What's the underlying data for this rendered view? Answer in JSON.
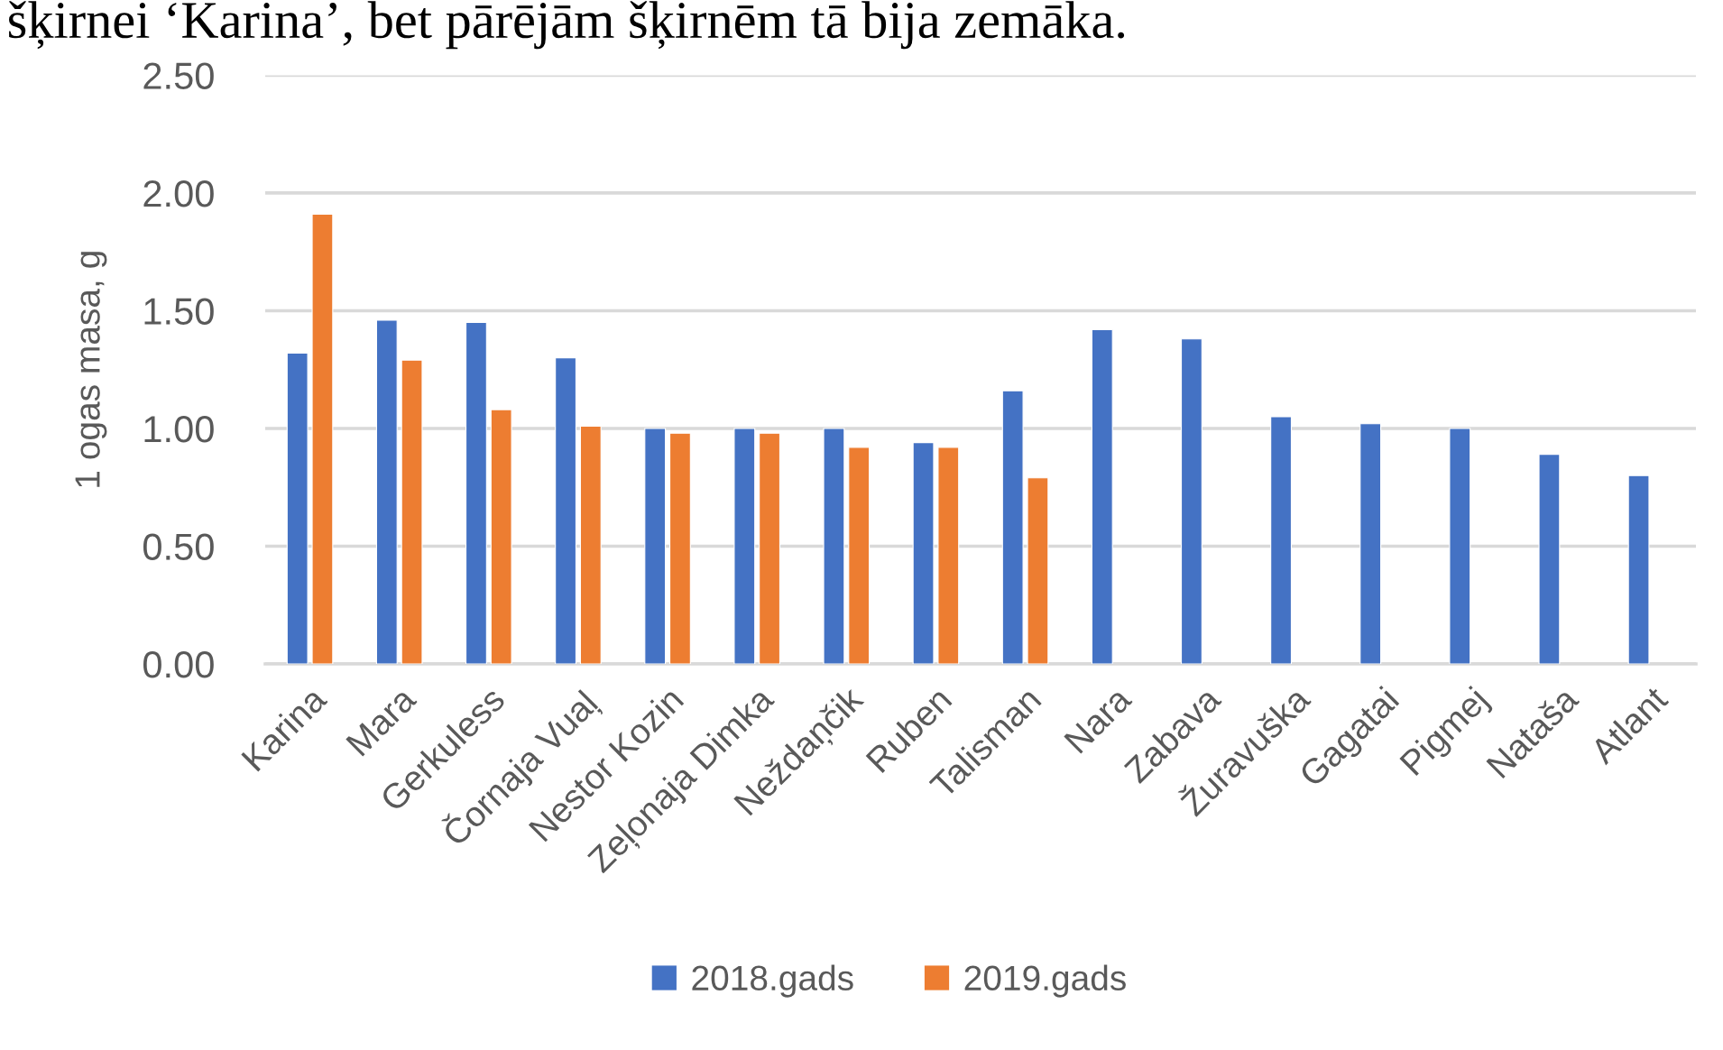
{
  "chart_data": {
    "type": "bar",
    "ylabel": "1 ogas masa, g",
    "categories": [
      "Karina",
      "Mara",
      "Gerkuless",
      "Čornaja Vuaļ",
      "Nestor Kozin",
      "Zeļonaja Dimka",
      "Neždaņčik",
      "Ruben",
      "Talisman",
      "Nara",
      "Zabava",
      "Žuravuška",
      "Gagatai",
      "Pigmej",
      "Nataša",
      "Atlant"
    ],
    "series": [
      {
        "name": "2018.gads",
        "color": "#4472c4",
        "values": [
          1.32,
          1.46,
          1.45,
          1.3,
          1.0,
          1.0,
          1.0,
          0.94,
          1.16,
          1.42,
          1.38,
          1.05,
          1.02,
          1.0,
          0.89,
          0.8
        ]
      },
      {
        "name": "2019.gads",
        "color": "#ed7d31",
        "values": [
          1.91,
          1.29,
          1.08,
          1.01,
          0.98,
          0.98,
          0.92,
          0.92,
          0.79,
          null,
          null,
          null,
          null,
          null,
          null,
          null
        ]
      }
    ],
    "ylim": [
      0,
      2.5
    ],
    "yticks": [
      {
        "value": 0,
        "label": "0.00"
      },
      {
        "value": 0.5,
        "label": "0.50"
      },
      {
        "value": 1,
        "label": "1.00"
      },
      {
        "value": 1.5,
        "label": "1.50"
      },
      {
        "value": 2,
        "label": "2.00"
      },
      {
        "value": 2.5,
        "label": "2.50"
      }
    ],
    "grid": "y",
    "legend": "bottom",
    "annotations": [
      "šķirnei ‘Karina’, bet pārējām šķirnēm tā bija zemāka."
    ]
  }
}
